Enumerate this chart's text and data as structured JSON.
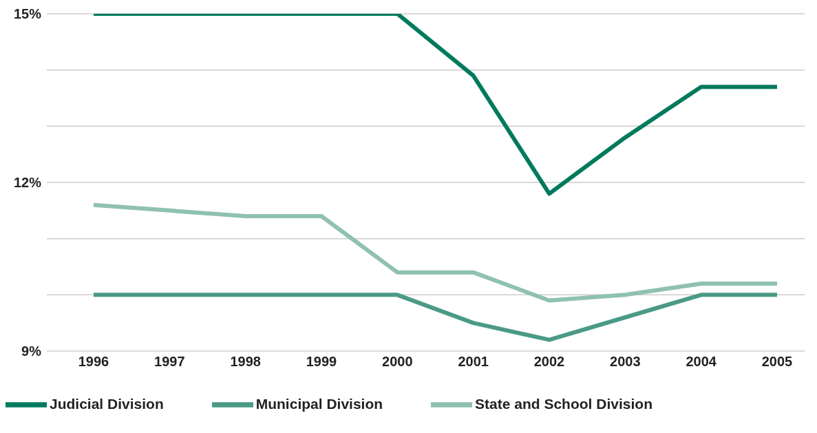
{
  "chart_data": {
    "type": "line",
    "categories": [
      "1996",
      "1997",
      "1998",
      "1999",
      "2000",
      "2001",
      "2002",
      "2003",
      "2004",
      "2005"
    ],
    "series": [
      {
        "name": "Judicial Division",
        "color": "#007a5e",
        "values": [
          15,
          15,
          15,
          15,
          15,
          13.9,
          11.8,
          12.8,
          13.7,
          13.7
        ]
      },
      {
        "name": "State and School Division",
        "color": "#8fc1b0",
        "values": [
          11.6,
          11.5,
          11.4,
          11.4,
          10.4,
          10.4,
          9.9,
          10.0,
          10.2,
          10.2
        ]
      },
      {
        "name": "Municipal Division",
        "color": "#4a9a86",
        "values": [
          10.0,
          10.0,
          10.0,
          10.0,
          10.0,
          9.5,
          9.2,
          9.6,
          10.0,
          10.0
        ]
      }
    ],
    "ylim": [
      9,
      15
    ],
    "yticks": [
      {
        "value": 9,
        "label": "9%"
      },
      {
        "value": 10,
        "label": null
      },
      {
        "value": 11,
        "label": null
      },
      {
        "value": 12,
        "label": "12%"
      },
      {
        "value": 13,
        "label": null
      },
      {
        "value": 14,
        "label": null
      },
      {
        "value": 15,
        "label": "15%"
      }
    ],
    "grid": "y",
    "legend": "bottom",
    "marker": "none",
    "line_style": "solid"
  }
}
